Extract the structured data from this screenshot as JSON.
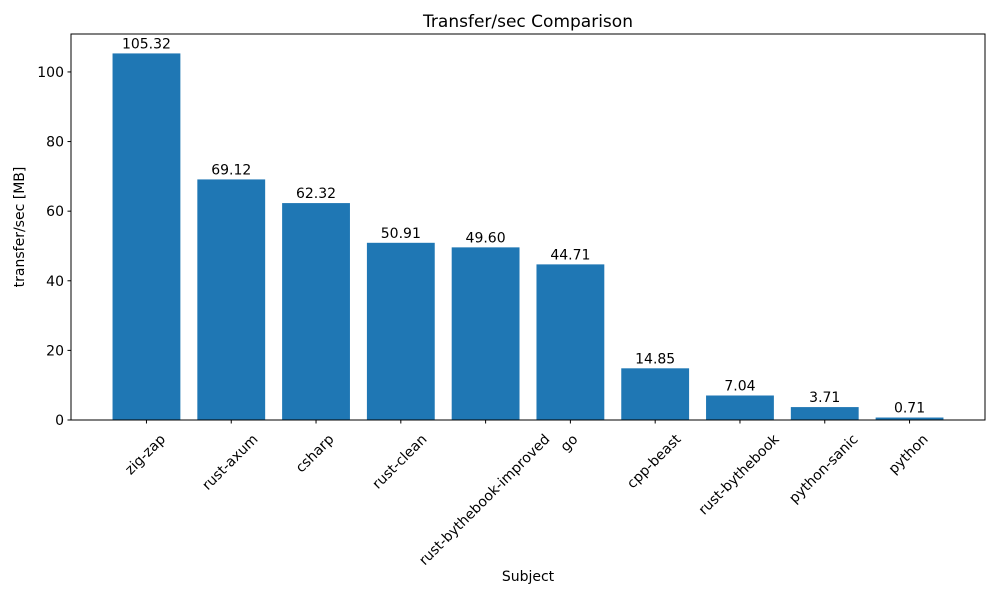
{
  "chart_data": {
    "type": "bar",
    "title": "Transfer/sec Comparison",
    "xlabel": "Subject",
    "ylabel": "transfer/sec [MB]",
    "categories": [
      "zig-zap",
      "rust-axum",
      "csharp",
      "rust-clean",
      "rust-bythebook-improved",
      "go",
      "cpp-beast",
      "rust-bythebook",
      "python-sanic",
      "python"
    ],
    "values": [
      105.32,
      69.12,
      62.32,
      50.91,
      49.6,
      44.71,
      14.85,
      7.04,
      3.71,
      0.71
    ],
    "value_labels": [
      "105.32",
      "69.12",
      "62.32",
      "50.91",
      "49.60",
      "44.71",
      "14.85",
      "7.04",
      "3.71",
      "0.71"
    ],
    "yticks": [
      0,
      20,
      40,
      60,
      80,
      100
    ],
    "ylim": [
      0,
      110.9
    ],
    "bar_color": "#1f77b4",
    "axis_color": "#000000",
    "text_color": "#000000",
    "background": "#ffffff",
    "grid": false,
    "legend": "none",
    "bar_width_fraction": 0.8,
    "x_tick_label_rotation_deg": 45
  }
}
